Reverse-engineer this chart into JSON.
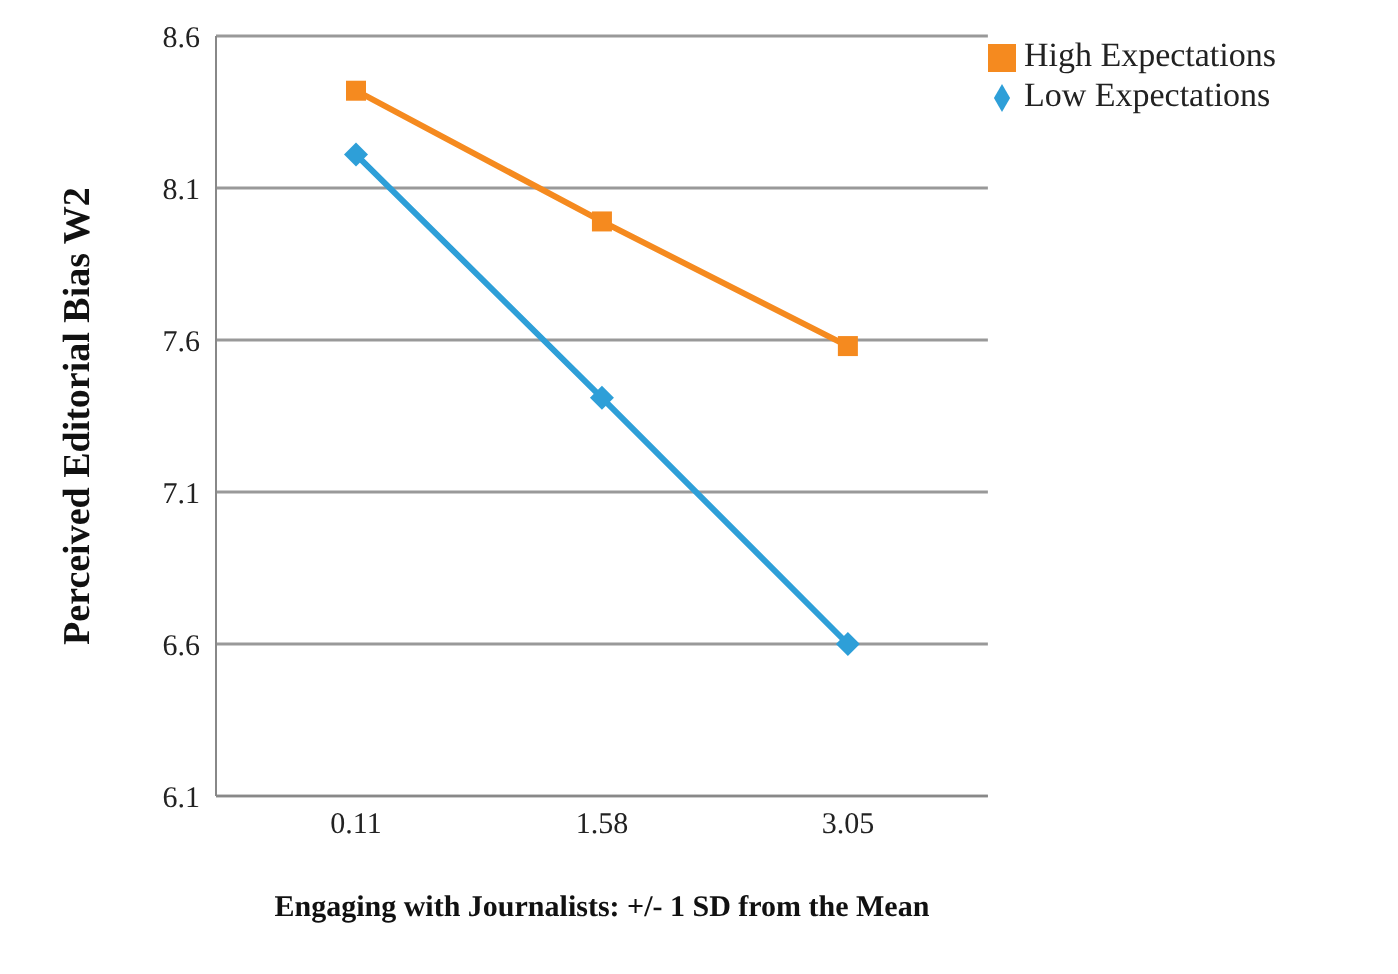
{
  "chart_data": {
    "type": "line",
    "xlabel": "Engaging with Journalists: +/- 1 SD from the Mean",
    "ylabel": "Perceived Editorial Bias W2",
    "categories": [
      "0.11",
      "1.58",
      "3.05"
    ],
    "series": [
      {
        "name": "Low Expectations",
        "color": "#2e9fd8",
        "marker": "diamond",
        "values": [
          8.21,
          7.41,
          6.6
        ]
      },
      {
        "name": "High Expectations",
        "color": "#f58a1f",
        "marker": "square",
        "values": [
          8.42,
          7.99,
          7.58
        ]
      }
    ],
    "ylim": [
      6.1,
      8.6
    ],
    "yticks": [
      6.1,
      6.6,
      7.1,
      7.6,
      8.1,
      8.6
    ],
    "grid": "y",
    "legend": "top right"
  }
}
